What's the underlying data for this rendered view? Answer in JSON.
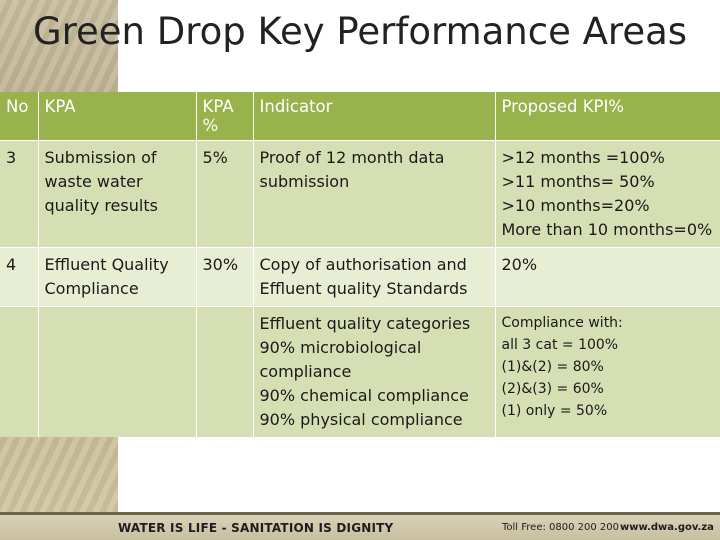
{
  "slide": {
    "title": "Green Drop Key Performance Areas"
  },
  "table": {
    "headers": {
      "no": "No",
      "kpa": "KPA",
      "kpa_pct_line1": "KPA",
      "kpa_pct_line2": "%",
      "indicator": "Indicator",
      "kpi": "Proposed KPI%"
    },
    "rows": [
      {
        "no": "3",
        "kpa_line1": "Submission of",
        "kpa_line2": "waste water",
        "kpa_line3": "quality results",
        "pct": "5%",
        "indicator_line1": "Proof of 12 month data",
        "indicator_line2": "submission",
        "kpi_lines": [
          ">12 months =100%",
          ">11 months= 50%",
          ">10 months=20%",
          "More than 10 months=0%"
        ]
      },
      {
        "no": "4",
        "kpa_line1": "Effluent Quality",
        "kpa_line2": "Compliance",
        "pct": "30%",
        "indicator_line1": "Copy of authorisation and",
        "indicator_line2": "Effluent quality Standards",
        "kpi": "20%"
      },
      {
        "indicator_lines": [
          "Effluent quality categories",
          "90% microbiological",
          "compliance",
          "90% chemical compliance",
          "90% physical compliance"
        ],
        "kpi_lines": [
          "Compliance with:",
          "all 3 cat = 100%",
          "(1)&(2) = 80%",
          "(2)&(3) = 60%",
          "(1) only = 50%"
        ]
      }
    ]
  },
  "footer": {
    "slogan": "WATER IS LIFE - SANITATION IS DIGNITY",
    "tollfree": "Toll Free: 0800 200 200",
    "website": "www.dwa.gov.za"
  },
  "colors": {
    "header_green": "#98b24c",
    "row_dark": "#d5dfb3",
    "row_light": "#e8eed3"
  }
}
